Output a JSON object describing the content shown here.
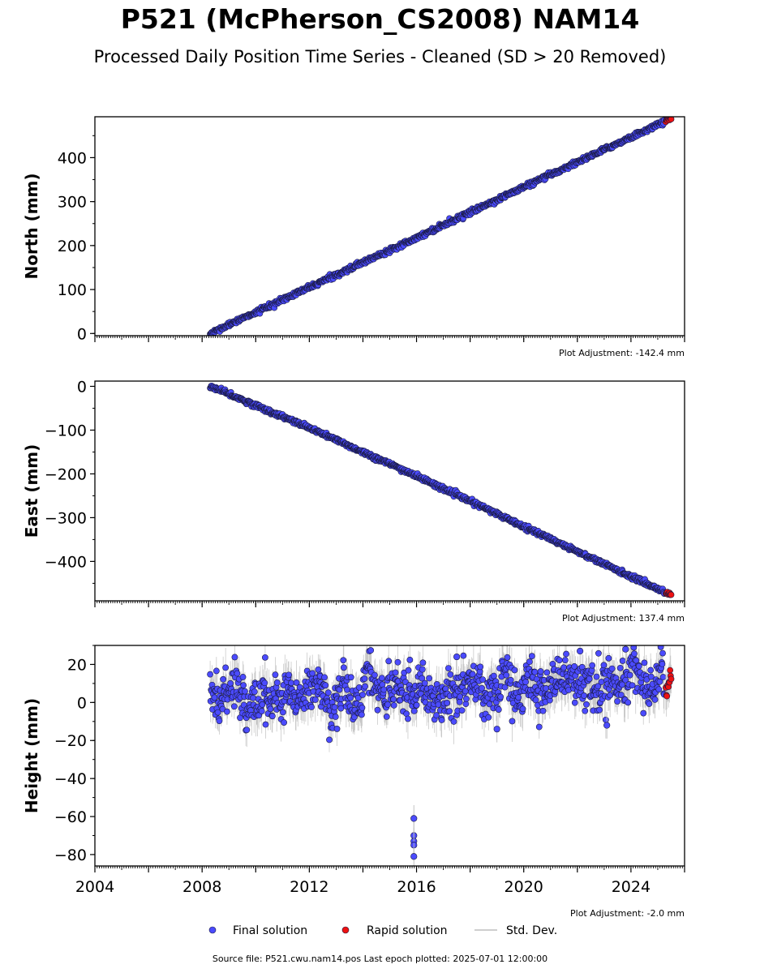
{
  "title": "P521 (McPherson_CS2008) NAM14",
  "subtitle": "Processed Daily Position Time Series - Cleaned (SD > 20 Removed)",
  "source_text": "Source file: P521.cwu.nam14.pos  Last epoch plotted: 2025-07-01 12:00:00",
  "colors": {
    "final": "#4b4bff",
    "final_edge": "#1a1a40",
    "rapid": "#ee1111",
    "stddev": "#bdbdbd"
  },
  "chart_data": [
    {
      "type": "scatter",
      "ylabel": "North (mm)",
      "xlim": [
        2004,
        2026
      ],
      "ylim": [
        -5,
        493
      ],
      "yticks": [
        0,
        100,
        200,
        300,
        400
      ],
      "ytick_labels": [
        "0",
        "100",
        "200",
        "300",
        "400"
      ],
      "adjustment": "Plot Adjustment: -142.4 mm",
      "series": [
        {
          "kind": "final",
          "x": [
            2008.3,
            2012.0,
            2016.0,
            2020.0,
            2025.25
          ],
          "y": [
            0,
            105,
            218,
            333,
            482
          ],
          "noise": 2.5
        },
        {
          "kind": "rapid",
          "x": [
            2025.3,
            2025.5
          ],
          "y": [
            484,
            490
          ],
          "noise": 1.5
        }
      ]
    },
    {
      "type": "scatter",
      "ylabel": "East (mm)",
      "xlim": [
        2004,
        2026
      ],
      "ylim": [
        -490,
        12
      ],
      "yticks": [
        0,
        -100,
        -200,
        -300,
        -400
      ],
      "ytick_labels": [
        "0",
        "−100",
        "−200",
        "−300",
        "−400"
      ],
      "adjustment": "Plot Adjustment: 137.4 mm",
      "series": [
        {
          "kind": "final",
          "x": [
            2008.3,
            2012.0,
            2016.0,
            2020.0,
            2025.25
          ],
          "y": [
            0,
            -95,
            -205,
            -320,
            -470
          ],
          "noise": 2.5
        },
        {
          "kind": "rapid",
          "x": [
            2025.3,
            2025.5
          ],
          "y": [
            -471,
            -476
          ],
          "noise": 1.5
        }
      ]
    },
    {
      "type": "scatter",
      "ylabel": "Height (mm)",
      "xlim": [
        2004,
        2026
      ],
      "ylim": [
        -86,
        30
      ],
      "yticks": [
        20,
        0,
        -20,
        -40,
        -60,
        -80
      ],
      "ytick_labels": [
        "20",
        "0",
        "−20",
        "−40",
        "−60",
        "−80"
      ],
      "xticks": [
        2004,
        2008,
        2012,
        2016,
        2020,
        2024
      ],
      "xtick_labels": [
        "2004",
        "2008",
        "2012",
        "2016",
        "2020",
        "2024"
      ],
      "adjustment": "Plot Adjustment: -2.0 mm",
      "series": [
        {
          "kind": "final",
          "x": [
            2008.3,
            2012.0,
            2016.0,
            2020.0,
            2025.25
          ],
          "y": [
            4,
            5,
            5,
            8,
            10
          ],
          "noise": 6
        },
        {
          "kind": "rapid",
          "x": [
            2025.3,
            2025.5
          ],
          "y": [
            4,
            14
          ],
          "noise": 2
        }
      ],
      "outliers": {
        "x": [
          2015.9,
          2015.9,
          2015.9,
          2015.9,
          2015.9,
          2019.0,
          2023.1,
          2017.5,
          2022.1,
          2023.8
        ],
        "y": [
          -61,
          -70,
          -73,
          -75,
          -81,
          -14,
          -12,
          24,
          27,
          28
        ]
      }
    }
  ],
  "legend": {
    "items": [
      {
        "kind": "final",
        "label": "Final solution"
      },
      {
        "kind": "rapid",
        "label": "Rapid solution"
      },
      {
        "kind": "stddev",
        "label": "Std. Dev."
      }
    ]
  }
}
